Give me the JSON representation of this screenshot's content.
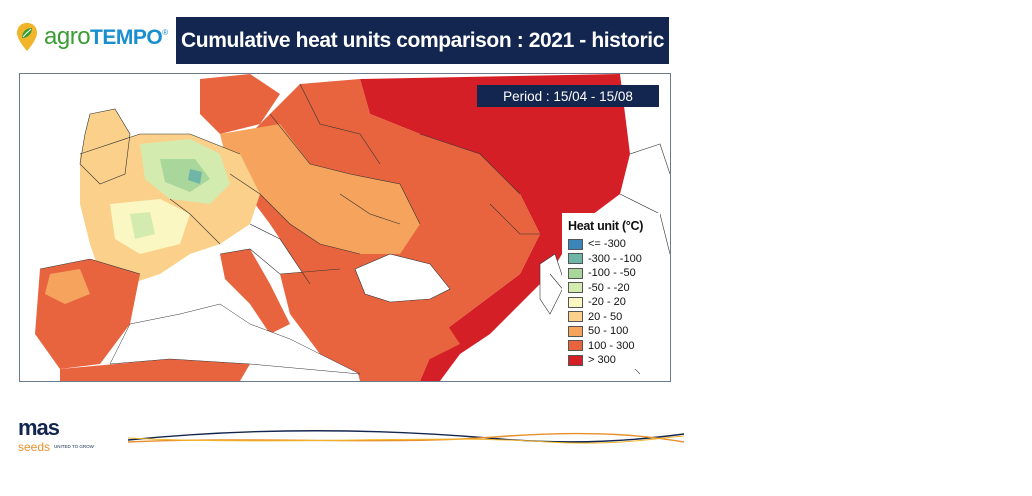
{
  "header": {
    "brand_prefix": "agro",
    "brand_suffix": "TEMPO",
    "brand_mark": "®",
    "title": "Cumulative heat units comparison : 2021 - historic"
  },
  "map": {
    "period": "Period : 15/04 - 15/08",
    "legend": {
      "title": "Heat unit (°C)",
      "items": [
        {
          "label": "<= -300",
          "color": "#3a86b8"
        },
        {
          "label": "-300 - -100",
          "color": "#6fb6a9"
        },
        {
          "label": "-100 - -50",
          "color": "#a9d69a"
        },
        {
          "label": "-50 - -20",
          "color": "#d4ebb0"
        },
        {
          "label": "-20 - 20",
          "color": "#fbf7c2"
        },
        {
          "label": "20 - 50",
          "color": "#fbd08a"
        },
        {
          "label": "50 - 100",
          "color": "#f6a45d"
        },
        {
          "label": "100 - 300",
          "color": "#e8643f"
        },
        {
          "label": "> 300",
          "color": "#d51f26"
        }
      ]
    }
  },
  "footer": {
    "logo_main": "mas",
    "logo_sub": "seeds",
    "tagline": "UNITED TO GROW"
  }
}
